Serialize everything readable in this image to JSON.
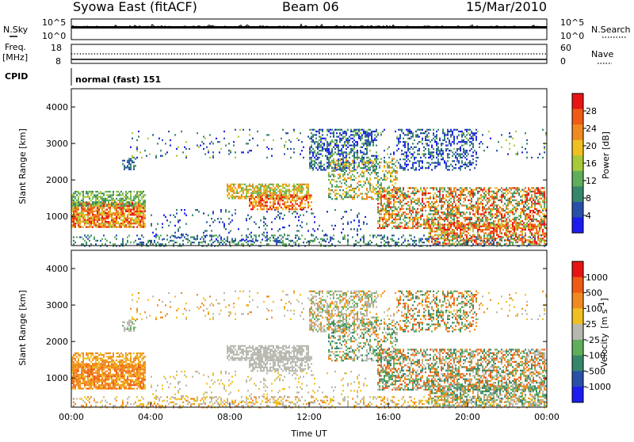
{
  "header": {
    "station": "Syowa East (fitACF)",
    "beam": "Beam 06",
    "date": "15/Mar/2010"
  },
  "colors": {
    "power_scale": [
      "#1c1cf0",
      "#2850a8",
      "#36876a",
      "#5fae5a",
      "#a8c93a",
      "#f0c020",
      "#f08a20",
      "#f05a14",
      "#e81414"
    ],
    "velocity_scale": [
      "#1c1cf0",
      "#2850a8",
      "#36876a",
      "#5fae5a",
      "#b8b8b0",
      "#f0c020",
      "#f08a20",
      "#f05a14",
      "#e81414"
    ],
    "trace": "#000000"
  },
  "chart_data": [
    {
      "type": "line",
      "name": "noise-panel",
      "left_label": "N.Sky",
      "right_label": "N.Search",
      "left_ticks": [
        "10^5",
        "10^0"
      ],
      "right_ticks": [
        "10^5",
        "10^0"
      ],
      "series": [
        {
          "name": "N.Sky",
          "style": "solid"
        },
        {
          "name": "N.Search",
          "style": "dotted"
        }
      ]
    },
    {
      "type": "line",
      "name": "freq-panel",
      "left_label": "Freq.",
      "left_unit": "[MHz]",
      "right_label": "Nave",
      "left_ticks": [
        "18",
        "8"
      ],
      "right_ticks": [
        "60",
        "0"
      ],
      "ylim_left": [
        8,
        18
      ],
      "ylim_right": [
        0,
        60
      ],
      "series": [
        {
          "name": "Freq.",
          "style": "solid"
        },
        {
          "name": "Nave",
          "style": "dotted"
        }
      ]
    },
    {
      "type": "table",
      "name": "cpid-panel",
      "label": "CPID",
      "mode": "normal (fast) 151"
    },
    {
      "type": "heatmap",
      "name": "power-panel",
      "ylabel": "Slant Range [km]",
      "ylim": [
        200,
        4500
      ],
      "yticks": [
        1000,
        2000,
        3000,
        4000
      ],
      "xlim": [
        0,
        24
      ],
      "colorbar_label": "Power [dB]",
      "colorbar_ticks": [
        "28",
        "24",
        "20",
        "16",
        "12",
        "8",
        "4"
      ],
      "colorbar_range": [
        0,
        32
      ]
    },
    {
      "type": "heatmap",
      "name": "velocity-panel",
      "ylabel": "Slant Range [km]",
      "ylim": [
        200,
        4500
      ],
      "yticks": [
        1000,
        2000,
        3000,
        4000
      ],
      "xlim": [
        0,
        24
      ],
      "xlabel": "Time UT",
      "xticks": [
        "00:00",
        "04:00",
        "08:00",
        "12:00",
        "16:00",
        "20:00",
        "00:00"
      ],
      "colorbar_label": "Velocity",
      "colorbar_unit": "[m s",
      "colorbar_unit_exp": "-1",
      "colorbar_unit_close": "]",
      "colorbar_ticks": [
        "1000",
        "500",
        "100",
        "25",
        "-25",
        "-100",
        "-500",
        "-1000"
      ]
    }
  ]
}
